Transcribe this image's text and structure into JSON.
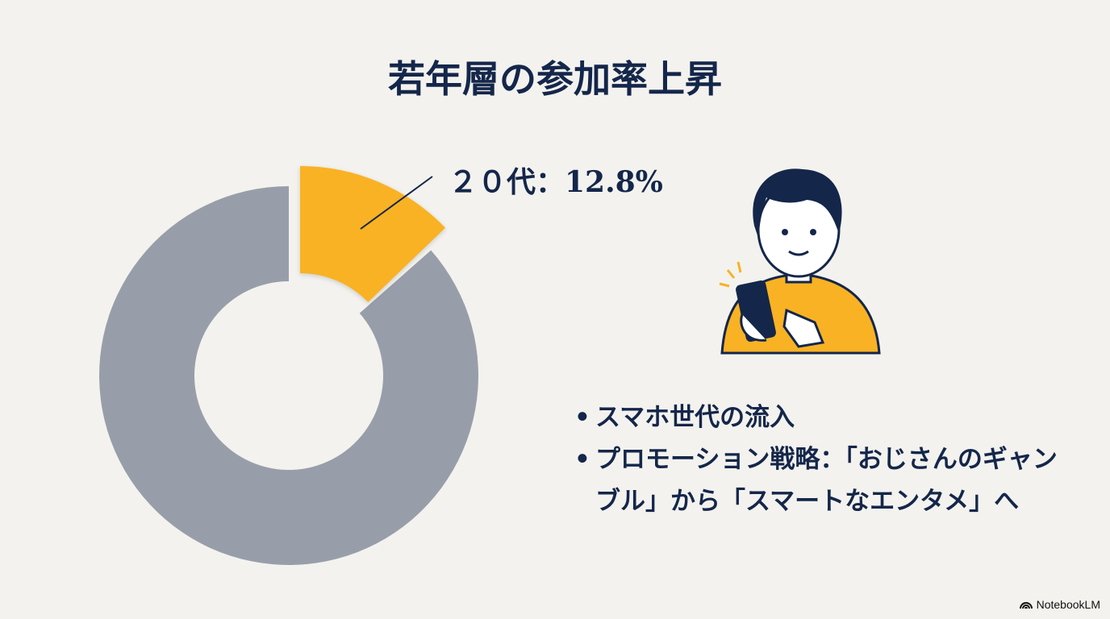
{
  "title": "若年層の参加率上昇",
  "chart_data": {
    "type": "pie",
    "donut": true,
    "slices": [
      {
        "label": "２０代",
        "value": 12.8,
        "color": "#f9b224",
        "exploded": true
      },
      {
        "label": "",
        "value": 87.2,
        "color": "#989ea9"
      }
    ],
    "annotation": "２０代：12.8%"
  },
  "bullets": [
    "スマホ世代の流入",
    "プロモーション戦略：「おじさんのギャンブル」から「スマートなエンタメ」へ"
  ],
  "brand": "NotebookLM"
}
